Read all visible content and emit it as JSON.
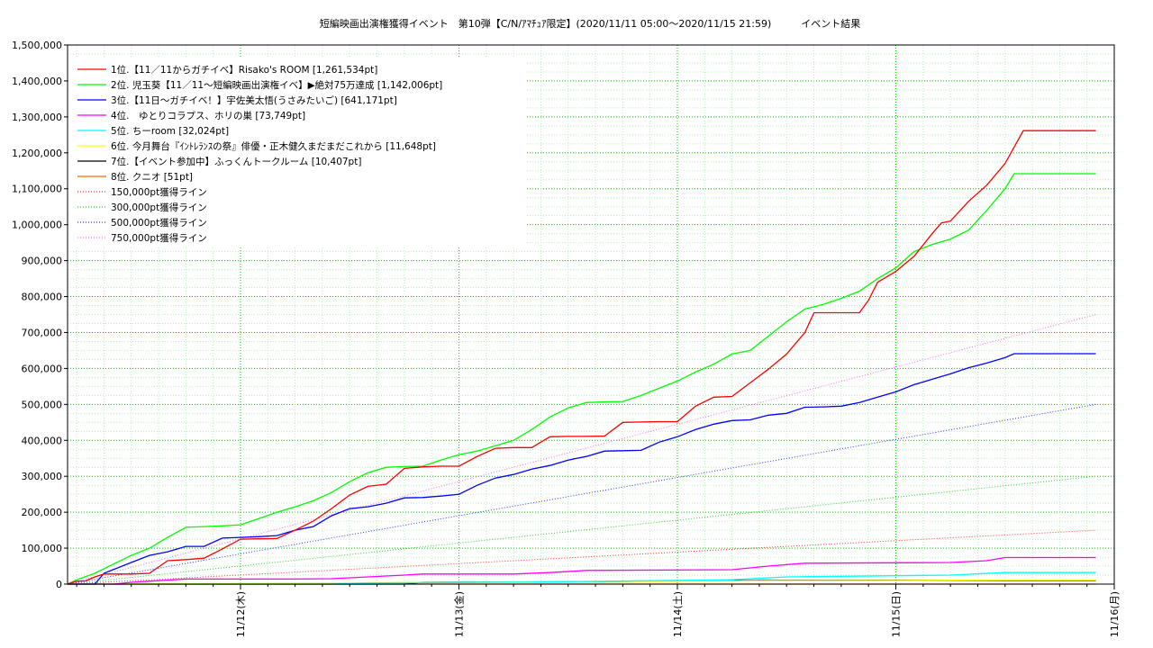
{
  "chart_data": {
    "type": "line",
    "title": "短編映画出演権獲得イベント　第10弾【C/N/ｱﾏﾁｭｱ限定】(2020/11/11 05:00〜2020/11/15 21:59)　　　イベント結果",
    "xlabel": "",
    "ylabel": "",
    "xlim": [
      "2020-11-11T05:00",
      "2020-11-16T00:00"
    ],
    "ylim": [
      0,
      1500000
    ],
    "y_ticks": [
      0,
      100000,
      200000,
      300000,
      400000,
      500000,
      600000,
      700000,
      800000,
      900000,
      1000000,
      1100000,
      1200000,
      1300000,
      1400000,
      1500000
    ],
    "y_tick_labels": [
      "0",
      "100,000",
      "200,000",
      "300,000",
      "400,000",
      "500,000",
      "600,000",
      "700,000",
      "800,000",
      "900,000",
      "1,000,000",
      "1,100,000",
      "1,200,000",
      "1,300,000",
      "1,400,000",
      "1,500,000"
    ],
    "x_ticks": [
      {
        "t": "2020-11-12T00:00",
        "label": "11/12(木)"
      },
      {
        "t": "2020-11-13T00:00",
        "label": "11/13(金)"
      },
      {
        "t": "2020-11-14T00:00",
        "label": "11/14(土)"
      },
      {
        "t": "2020-11-15T00:00",
        "label": "11/15(日)"
      },
      {
        "t": "2020-11-16T00:00",
        "label": "11/16(月)"
      }
    ],
    "grid": true,
    "legend_position": "top-left",
    "series": [
      {
        "name": "1位.【11／11からガチイベ】Risako's ROOM [1,261,534pt]",
        "color": "#ff0000",
        "style": "solid",
        "points": [
          [
            "2020-11-11T05:00",
            0
          ],
          [
            "2020-11-11T06:00",
            8000
          ],
          [
            "2020-11-11T07:00",
            9000
          ],
          [
            "2020-11-11T08:00",
            20000
          ],
          [
            "2020-11-11T09:00",
            28000
          ],
          [
            "2020-11-11T10:00",
            28000
          ],
          [
            "2020-11-11T12:00",
            28000
          ],
          [
            "2020-11-11T14:00",
            30000
          ],
          [
            "2020-11-11T16:00",
            65000
          ],
          [
            "2020-11-11T18:00",
            68000
          ],
          [
            "2020-11-11T20:00",
            72000
          ],
          [
            "2020-11-11T22:00",
            98000
          ],
          [
            "2020-11-12T00:00",
            125000
          ],
          [
            "2020-11-12T02:00",
            126000
          ],
          [
            "2020-11-12T04:00",
            127000
          ],
          [
            "2020-11-12T06:00",
            150000
          ],
          [
            "2020-11-12T08:00",
            175000
          ],
          [
            "2020-11-12T10:00",
            210000
          ],
          [
            "2020-11-12T12:00",
            248000
          ],
          [
            "2020-11-12T14:00",
            272000
          ],
          [
            "2020-11-12T16:00",
            278000
          ],
          [
            "2020-11-12T18:00",
            322000
          ],
          [
            "2020-11-12T20:00",
            326000
          ],
          [
            "2020-11-12T22:00",
            328000
          ],
          [
            "2020-11-13T00:00",
            328000
          ],
          [
            "2020-11-13T02:00",
            355000
          ],
          [
            "2020-11-13T04:00",
            378000
          ],
          [
            "2020-11-13T06:00",
            380000
          ],
          [
            "2020-11-13T08:00",
            380000
          ],
          [
            "2020-11-13T10:00",
            410000
          ],
          [
            "2020-11-13T12:00",
            411000
          ],
          [
            "2020-11-13T14:00",
            411000
          ],
          [
            "2020-11-13T16:00",
            412000
          ],
          [
            "2020-11-13T18:00",
            450000
          ],
          [
            "2020-11-13T20:00",
            451000
          ],
          [
            "2020-11-13T22:00",
            452000
          ],
          [
            "2020-11-14T00:00",
            452000
          ],
          [
            "2020-11-14T02:00",
            495000
          ],
          [
            "2020-11-14T04:00",
            520000
          ],
          [
            "2020-11-14T06:00",
            522000
          ],
          [
            "2020-11-14T08:00",
            560000
          ],
          [
            "2020-11-14T10:00",
            598000
          ],
          [
            "2020-11-14T12:00",
            640000
          ],
          [
            "2020-11-14T14:00",
            700000
          ],
          [
            "2020-11-14T15:00",
            755000
          ],
          [
            "2020-11-14T16:00",
            755000
          ],
          [
            "2020-11-14T18:00",
            755000
          ],
          [
            "2020-11-14T20:00",
            755000
          ],
          [
            "2020-11-14T21:00",
            790000
          ],
          [
            "2020-11-14T22:00",
            840000
          ],
          [
            "2020-11-15T00:00",
            870000
          ],
          [
            "2020-11-15T02:00",
            912000
          ],
          [
            "2020-11-15T04:00",
            975000
          ],
          [
            "2020-11-15T05:00",
            1005000
          ],
          [
            "2020-11-15T06:00",
            1010000
          ],
          [
            "2020-11-15T08:00",
            1065000
          ],
          [
            "2020-11-15T10:00",
            1110000
          ],
          [
            "2020-11-15T12:00",
            1170000
          ],
          [
            "2020-11-15T14:00",
            1261534
          ],
          [
            "2020-11-15T21:59",
            1261534
          ]
        ]
      },
      {
        "name": "2位. 児玉葵【11／11〜短編映画出演権イベ】▶絶対75万達成 [1,142,006pt]",
        "color": "#00ff00",
        "style": "solid",
        "points": [
          [
            "2020-11-11T05:00",
            0
          ],
          [
            "2020-11-11T06:00",
            12000
          ],
          [
            "2020-11-11T08:00",
            30000
          ],
          [
            "2020-11-11T10:00",
            55000
          ],
          [
            "2020-11-11T12:00",
            80000
          ],
          [
            "2020-11-11T14:00",
            100000
          ],
          [
            "2020-11-11T16:00",
            130000
          ],
          [
            "2020-11-11T18:00",
            158000
          ],
          [
            "2020-11-11T20:00",
            160000
          ],
          [
            "2020-11-11T22:00",
            162000
          ],
          [
            "2020-11-12T00:00",
            165000
          ],
          [
            "2020-11-12T02:00",
            182000
          ],
          [
            "2020-11-12T04:00",
            200000
          ],
          [
            "2020-11-12T06:00",
            215000
          ],
          [
            "2020-11-12T08:00",
            232000
          ],
          [
            "2020-11-12T10:00",
            255000
          ],
          [
            "2020-11-12T12:00",
            285000
          ],
          [
            "2020-11-12T14:00",
            310000
          ],
          [
            "2020-11-12T16:00",
            325000
          ],
          [
            "2020-11-12T18:00",
            327000
          ],
          [
            "2020-11-12T20:00",
            328000
          ],
          [
            "2020-11-12T22:00",
            345000
          ],
          [
            "2020-11-13T00:00",
            360000
          ],
          [
            "2020-11-13T02:00",
            370000
          ],
          [
            "2020-11-13T04:00",
            385000
          ],
          [
            "2020-11-13T06:00",
            400000
          ],
          [
            "2020-11-13T08:00",
            430000
          ],
          [
            "2020-11-13T10:00",
            465000
          ],
          [
            "2020-11-13T12:00",
            490000
          ],
          [
            "2020-11-13T14:00",
            505000
          ],
          [
            "2020-11-13T16:00",
            507000
          ],
          [
            "2020-11-13T18:00",
            508000
          ],
          [
            "2020-11-13T20:00",
            525000
          ],
          [
            "2020-11-13T22:00",
            545000
          ],
          [
            "2020-11-14T00:00",
            565000
          ],
          [
            "2020-11-14T02:00",
            590000
          ],
          [
            "2020-11-14T04:00",
            612000
          ],
          [
            "2020-11-14T06:00",
            640000
          ],
          [
            "2020-11-14T08:00",
            650000
          ],
          [
            "2020-11-14T10:00",
            690000
          ],
          [
            "2020-11-14T12:00",
            730000
          ],
          [
            "2020-11-14T14:00",
            765000
          ],
          [
            "2020-11-14T16:00",
            778000
          ],
          [
            "2020-11-14T18:00",
            795000
          ],
          [
            "2020-11-14T20:00",
            815000
          ],
          [
            "2020-11-14T22:00",
            850000
          ],
          [
            "2020-11-15T00:00",
            880000
          ],
          [
            "2020-11-15T02:00",
            925000
          ],
          [
            "2020-11-15T04:00",
            945000
          ],
          [
            "2020-11-15T06:00",
            960000
          ],
          [
            "2020-11-15T08:00",
            985000
          ],
          [
            "2020-11-15T10:00",
            1040000
          ],
          [
            "2020-11-15T12:00",
            1100000
          ],
          [
            "2020-11-15T13:00",
            1142006
          ],
          [
            "2020-11-15T21:59",
            1142006
          ]
        ]
      },
      {
        "name": "3位.【11日〜ガチイベ！】宇佐美太悟(うさみたいご) [641,171pt]",
        "color": "#0000ff",
        "style": "solid",
        "points": [
          [
            "2020-11-11T05:00",
            0
          ],
          [
            "2020-11-11T08:00",
            0
          ],
          [
            "2020-11-11T09:00",
            30000
          ],
          [
            "2020-11-11T10:00",
            40000
          ],
          [
            "2020-11-11T12:00",
            60000
          ],
          [
            "2020-11-11T14:00",
            80000
          ],
          [
            "2020-11-11T16:00",
            90000
          ],
          [
            "2020-11-11T18:00",
            105000
          ],
          [
            "2020-11-11T20:00",
            105000
          ],
          [
            "2020-11-11T22:00",
            128000
          ],
          [
            "2020-11-12T00:00",
            130000
          ],
          [
            "2020-11-12T02:00",
            132000
          ],
          [
            "2020-11-12T04:00",
            135000
          ],
          [
            "2020-11-12T06:00",
            150000
          ],
          [
            "2020-11-12T08:00",
            160000
          ],
          [
            "2020-11-12T10:00",
            190000
          ],
          [
            "2020-11-12T12:00",
            210000
          ],
          [
            "2020-11-12T14:00",
            215000
          ],
          [
            "2020-11-12T16:00",
            225000
          ],
          [
            "2020-11-12T18:00",
            240000
          ],
          [
            "2020-11-12T20:00",
            241000
          ],
          [
            "2020-11-12T22:00",
            245000
          ],
          [
            "2020-11-13T00:00",
            250000
          ],
          [
            "2020-11-13T02:00",
            275000
          ],
          [
            "2020-11-13T04:00",
            295000
          ],
          [
            "2020-11-13T06:00",
            305000
          ],
          [
            "2020-11-13T08:00",
            320000
          ],
          [
            "2020-11-13T10:00",
            330000
          ],
          [
            "2020-11-13T12:00",
            345000
          ],
          [
            "2020-11-13T14:00",
            355000
          ],
          [
            "2020-11-13T16:00",
            370000
          ],
          [
            "2020-11-13T18:00",
            371000
          ],
          [
            "2020-11-13T20:00",
            372000
          ],
          [
            "2020-11-13T22:00",
            395000
          ],
          [
            "2020-11-14T00:00",
            410000
          ],
          [
            "2020-11-14T02:00",
            430000
          ],
          [
            "2020-11-14T04:00",
            445000
          ],
          [
            "2020-11-14T06:00",
            455000
          ],
          [
            "2020-11-14T08:00",
            457000
          ],
          [
            "2020-11-14T10:00",
            470000
          ],
          [
            "2020-11-14T12:00",
            475000
          ],
          [
            "2020-11-14T14:00",
            492000
          ],
          [
            "2020-11-14T16:00",
            493000
          ],
          [
            "2020-11-14T18:00",
            495000
          ],
          [
            "2020-11-14T20:00",
            505000
          ],
          [
            "2020-11-14T22:00",
            520000
          ],
          [
            "2020-11-15T00:00",
            535000
          ],
          [
            "2020-11-15T02:00",
            555000
          ],
          [
            "2020-11-15T04:00",
            570000
          ],
          [
            "2020-11-15T06:00",
            585000
          ],
          [
            "2020-11-15T08:00",
            602000
          ],
          [
            "2020-11-15T10:00",
            615000
          ],
          [
            "2020-11-15T12:00",
            630000
          ],
          [
            "2020-11-15T13:00",
            641171
          ],
          [
            "2020-11-15T21:59",
            641171
          ]
        ]
      },
      {
        "name": "4位.　ゆとりコラプス、ホリの巣 [73,749pt]",
        "color": "#ff00ff",
        "style": "solid",
        "points": [
          [
            "2020-11-11T05:00",
            0
          ],
          [
            "2020-11-11T10:00",
            0
          ],
          [
            "2020-11-11T12:00",
            5000
          ],
          [
            "2020-11-11T14:00",
            8000
          ],
          [
            "2020-11-11T18:00",
            14000
          ],
          [
            "2020-11-12T06:00",
            14000
          ],
          [
            "2020-11-12T10:00",
            15000
          ],
          [
            "2020-11-12T14:00",
            20000
          ],
          [
            "2020-11-12T18:00",
            25000
          ],
          [
            "2020-11-12T20:00",
            28000
          ],
          [
            "2020-11-13T06:00",
            28000
          ],
          [
            "2020-11-13T10:00",
            32000
          ],
          [
            "2020-11-13T14:00",
            38000
          ],
          [
            "2020-11-14T06:00",
            40000
          ],
          [
            "2020-11-14T10:00",
            50000
          ],
          [
            "2020-11-14T14:00",
            58000
          ],
          [
            "2020-11-15T06:00",
            60000
          ],
          [
            "2020-11-15T10:00",
            65000
          ],
          [
            "2020-11-15T12:00",
            73749
          ],
          [
            "2020-11-15T21:59",
            73749
          ]
        ]
      },
      {
        "name": "5位. ちーroom [32,024pt]",
        "color": "#00ffff",
        "style": "solid",
        "points": [
          [
            "2020-11-11T05:00",
            0
          ],
          [
            "2020-11-12T10:00",
            0
          ],
          [
            "2020-11-12T14:00",
            3000
          ],
          [
            "2020-11-13T10:00",
            6000
          ],
          [
            "2020-11-14T06:00",
            12000
          ],
          [
            "2020-11-14T12:00",
            20000
          ],
          [
            "2020-11-15T06:00",
            25000
          ],
          [
            "2020-11-15T12:00",
            32024
          ],
          [
            "2020-11-15T21:59",
            32024
          ]
        ]
      },
      {
        "name": "6位. 今月舞台『ｲﾝﾄﾚﾗﾝｽの祭』俳優・正木健久まだまだこれから [11,648pt]",
        "color": "#ffff00",
        "style": "solid",
        "points": [
          [
            "2020-11-11T05:00",
            0
          ],
          [
            "2020-11-12T00:00",
            2000
          ],
          [
            "2020-11-13T00:00",
            5000
          ],
          [
            "2020-11-14T00:00",
            8000
          ],
          [
            "2020-11-15T00:00",
            10000
          ],
          [
            "2020-11-15T12:00",
            11648
          ],
          [
            "2020-11-15T21:59",
            11648
          ]
        ]
      },
      {
        "name": "7位.【イベント参加中】ふっくんトークルーム [10,407pt]",
        "color": "#000000",
        "style": "solid",
        "points": [
          [
            "2020-11-11T05:00",
            0
          ],
          [
            "2020-11-12T18:00",
            0
          ],
          [
            "2020-11-12T20:00",
            5000
          ],
          [
            "2020-11-13T16:00",
            7000
          ],
          [
            "2020-11-14T00:00",
            9000
          ],
          [
            "2020-11-15T00:00",
            10407
          ],
          [
            "2020-11-15T21:59",
            10407
          ]
        ]
      },
      {
        "name": "8位. クニオ [51pt]",
        "color": "#ff6600",
        "style": "solid",
        "points": [
          [
            "2020-11-11T05:00",
            0
          ],
          [
            "2020-11-15T21:59",
            51
          ]
        ]
      },
      {
        "name": "150,000pt獲得ライン",
        "color": "#ff3333",
        "style": "dotted",
        "points": [
          [
            "2020-11-11T05:00",
            0
          ],
          [
            "2020-11-15T21:59",
            150000
          ]
        ]
      },
      {
        "name": "300,000pt獲得ライン",
        "color": "#33cc33",
        "style": "dotted",
        "points": [
          [
            "2020-11-11T05:00",
            0
          ],
          [
            "2020-11-15T21:59",
            300000
          ]
        ]
      },
      {
        "name": "500,000pt獲得ライン",
        "color": "#3333ff",
        "style": "dotted",
        "points": [
          [
            "2020-11-11T05:00",
            0
          ],
          [
            "2020-11-15T21:59",
            500000
          ]
        ]
      },
      {
        "name": "750,000pt獲得ライン",
        "color": "#ff66ff",
        "style": "dotted",
        "points": [
          [
            "2020-11-11T05:00",
            0
          ],
          [
            "2020-11-15T21:59",
            750000
          ]
        ]
      }
    ]
  }
}
